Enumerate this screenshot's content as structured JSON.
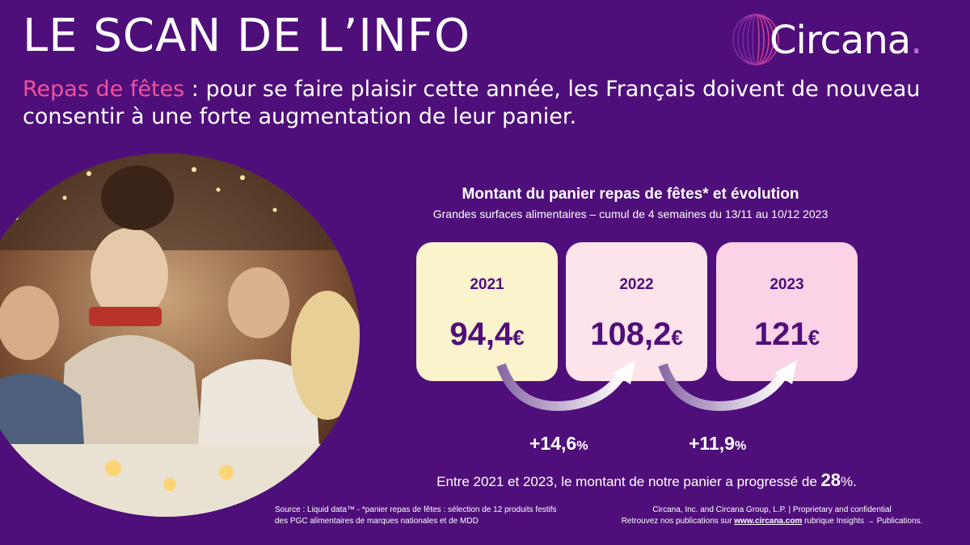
{
  "header": {
    "title": "LE SCAN DE L’INFO",
    "logo_text": "Circana",
    "logo_dot": "."
  },
  "headline": {
    "highlight": "Repas de fêtes",
    "text": " : pour se faire plaisir cette année, les Français doivent de nouveau consentir à une forte augmentation de leur panier."
  },
  "chart_data": {
    "type": "table",
    "title": "Montant du panier repas de fêtes* et évolution",
    "subtitle": "Grandes surfaces alimentaires – cumul de 4 semaines du 13/11 au 10/12 2023",
    "years": [
      "2021",
      "2022",
      "2023"
    ],
    "amounts": [
      "94,4",
      "108,2",
      "121"
    ],
    "values": [
      94.4,
      108.2,
      121
    ],
    "currency": "€",
    "evolutions": [
      {
        "value": "+14,6",
        "unit": "%"
      },
      {
        "value": "+11,9",
        "unit": "%"
      }
    ]
  },
  "colors": {
    "background": "#4f0f7a",
    "highlight": "#f0529b",
    "box_2021": "#fbf3cc",
    "box_2022": "#fde3ea",
    "box_2023": "#fbd2e6"
  },
  "summary": {
    "before": "Entre 2021 et 2023, le montant de notre panier a progressé de ",
    "value": "28",
    "after": "%."
  },
  "footer": {
    "source_line1": "Source : Liquid data™ - *panier repas de fêtes : sélection de 12 produits festifs",
    "source_line2": "des PGC alimentaires de marques nationales et de MDD",
    "legal_line1": "Circana, Inc. and Circana Group, L.P. |  Proprietary and confidential",
    "legal_before": "Retrouvez nos publications sur ",
    "legal_link": "www.circana.com",
    "legal_after": " rubrique Insights → Publications."
  }
}
